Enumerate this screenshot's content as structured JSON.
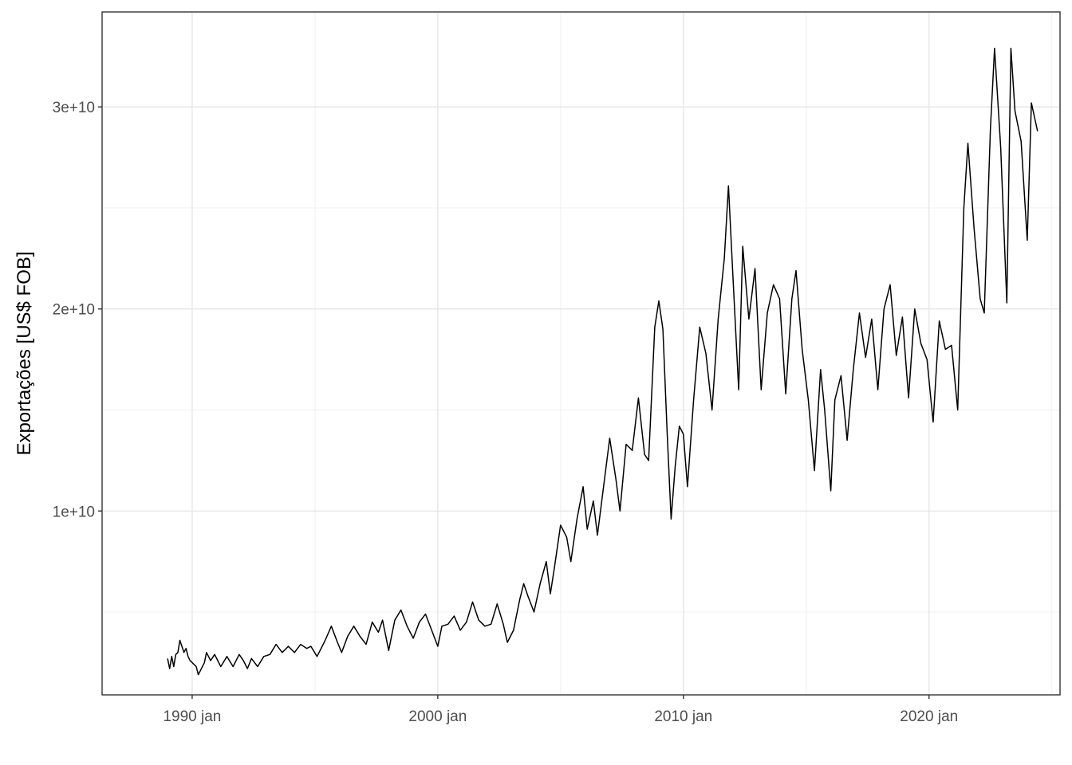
{
  "chart_data": {
    "type": "line",
    "title": "",
    "xlabel": "",
    "ylabel": "Exportações [US$ FOB]",
    "x_start": "1989-01",
    "x_end": "2024-06",
    "x_step": "month",
    "xlim": [
      "1986-05",
      "2025-05"
    ],
    "ylim": [
      900000000.0,
      34700000000.0
    ],
    "x_ticks": [
      {
        "value": "1990-01",
        "label": "1990 jan"
      },
      {
        "value": "2000-01",
        "label": "2000 jan"
      },
      {
        "value": "2010-01",
        "label": "2010 jan"
      },
      {
        "value": "2020-01",
        "label": "2020 jan"
      }
    ],
    "x_minor_ticks": [
      "1995-01",
      "2005-01",
      "2015-01",
      "2025-01"
    ],
    "y_ticks": [
      {
        "value": 10000000000,
        "label": "1e+10"
      },
      {
        "value": 20000000000,
        "label": "2e+10"
      },
      {
        "value": 30000000000,
        "label": "3e+10"
      }
    ],
    "y_minor_ticks": [
      5000000000,
      15000000000,
      25000000000
    ],
    "grid": true,
    "line_color": "#000000",
    "series": [
      {
        "keypoints": [
          [
            "1989-01",
            2700000000.0
          ],
          [
            "1989-02",
            2200000000.0
          ],
          [
            "1989-03",
            2800000000.0
          ],
          [
            "1989-04",
            2300000000.0
          ],
          [
            "1989-05",
            2900000000.0
          ],
          [
            "1989-06",
            3000000000.0
          ],
          [
            "1989-07",
            3600000000.0
          ],
          [
            "1989-08",
            3300000000.0
          ],
          [
            "1989-09",
            3000000000.0
          ],
          [
            "1989-10",
            3200000000.0
          ],
          [
            "1989-11",
            2800000000.0
          ],
          [
            "1989-12",
            2600000000.0
          ],
          [
            "1990-01",
            2500000000.0
          ],
          [
            "1990-03",
            2300000000.0
          ],
          [
            "1990-04",
            1900000000.0
          ],
          [
            "1990-05",
            2100000000.0
          ],
          [
            "1990-07",
            2500000000.0
          ],
          [
            "1990-08",
            3000000000.0
          ],
          [
            "1990-10",
            2600000000.0
          ],
          [
            "1990-12",
            2900000000.0
          ],
          [
            "1991-03",
            2300000000.0
          ],
          [
            "1991-06",
            2800000000.0
          ],
          [
            "1991-09",
            2300000000.0
          ],
          [
            "1991-12",
            2900000000.0
          ],
          [
            "1992-02",
            2600000000.0
          ],
          [
            "1992-04",
            2200000000.0
          ],
          [
            "1992-06",
            2700000000.0
          ],
          [
            "1992-09",
            2300000000.0
          ],
          [
            "1992-12",
            2800000000.0
          ],
          [
            "1993-03",
            2900000000.0
          ],
          [
            "1993-06",
            3400000000.0
          ],
          [
            "1993-09",
            3000000000.0
          ],
          [
            "1993-12",
            3300000000.0
          ],
          [
            "1994-03",
            3000000000.0
          ],
          [
            "1994-06",
            3400000000.0
          ],
          [
            "1994-09",
            3200000000.0
          ],
          [
            "1994-11",
            3300000000.0
          ],
          [
            "1995-02",
            2800000000.0
          ],
          [
            "1995-06",
            3600000000.0
          ],
          [
            "1995-09",
            4300000000.0
          ],
          [
            "1995-12",
            3500000000.0
          ],
          [
            "1996-02",
            3000000000.0
          ],
          [
            "1996-05",
            3800000000.0
          ],
          [
            "1996-08",
            4300000000.0
          ],
          [
            "1996-11",
            3800000000.0
          ],
          [
            "1997-02",
            3400000000.0
          ],
          [
            "1997-05",
            4500000000.0
          ],
          [
            "1997-08",
            4000000000.0
          ],
          [
            "1997-10",
            4600000000.0
          ],
          [
            "1998-01",
            3100000000.0
          ],
          [
            "1998-04",
            4600000000.0
          ],
          [
            "1998-07",
            5100000000.0
          ],
          [
            "1998-10",
            4300000000.0
          ],
          [
            "1999-01",
            3700000000.0
          ],
          [
            "1999-04",
            4500000000.0
          ],
          [
            "1999-07",
            4900000000.0
          ],
          [
            "1999-10",
            4100000000.0
          ],
          [
            "2000-01",
            3300000000.0
          ],
          [
            "2000-03",
            4300000000.0
          ],
          [
            "2000-06",
            4400000000.0
          ],
          [
            "2000-09",
            4800000000.0
          ],
          [
            "2000-12",
            4100000000.0
          ],
          [
            "2001-03",
            4500000000.0
          ],
          [
            "2001-06",
            5500000000.0
          ],
          [
            "2001-09",
            4600000000.0
          ],
          [
            "2001-12",
            4300000000.0
          ],
          [
            "2002-03",
            4400000000.0
          ],
          [
            "2002-06",
            5400000000.0
          ],
          [
            "2002-09",
            4400000000.0
          ],
          [
            "2002-11",
            3500000000.0
          ],
          [
            "2003-02",
            4100000000.0
          ],
          [
            "2003-05",
            5600000000.0
          ],
          [
            "2003-07",
            6400000000.0
          ],
          [
            "2003-09",
            5800000000.0
          ],
          [
            "2003-12",
            5000000000.0
          ],
          [
            "2004-03",
            6400000000.0
          ],
          [
            "2004-06",
            7500000000.0
          ],
          [
            "2004-08",
            5900000000.0
          ],
          [
            "2004-10",
            7200000000.0
          ],
          [
            "2005-01",
            9300000000.0
          ],
          [
            "2005-04",
            8700000000.0
          ],
          [
            "2005-06",
            7500000000.0
          ],
          [
            "2005-09",
            9600000000.0
          ],
          [
            "2005-12",
            11200000000.0
          ],
          [
            "2006-02",
            9100000000.0
          ],
          [
            "2006-05",
            10500000000.0
          ],
          [
            "2006-07",
            8800000000.0
          ],
          [
            "2006-10",
            11200000000.0
          ],
          [
            "2007-01",
            13600000000.0
          ],
          [
            "2007-04",
            11600000000.0
          ],
          [
            "2007-06",
            10000000000.0
          ],
          [
            "2007-09",
            13300000000.0
          ],
          [
            "2007-12",
            13000000000.0
          ],
          [
            "2008-03",
            15600000000.0
          ],
          [
            "2008-06",
            12800000000.0
          ],
          [
            "2008-08",
            12500000000.0
          ],
          [
            "2008-11",
            19100000000.0
          ],
          [
            "2009-01",
            20400000000.0
          ],
          [
            "2009-03",
            19000000000.0
          ],
          [
            "2009-05",
            14000000000.0
          ],
          [
            "2009-07",
            9600000000.0
          ],
          [
            "2009-09",
            12200000000.0
          ],
          [
            "2009-11",
            14200000000.0
          ],
          [
            "2010-01",
            13800000000.0
          ],
          [
            "2010-03",
            11200000000.0
          ],
          [
            "2010-06",
            15500000000.0
          ],
          [
            "2010-09",
            19100000000.0
          ],
          [
            "2010-12",
            17800000000.0
          ],
          [
            "2011-03",
            15000000000.0
          ],
          [
            "2011-06",
            19500000000.0
          ],
          [
            "2011-09",
            22500000000.0
          ],
          [
            "2011-11",
            26100000000.0
          ],
          [
            "2012-01",
            22000000000.0
          ],
          [
            "2012-04",
            16000000000.0
          ],
          [
            "2012-06",
            23100000000.0
          ],
          [
            "2012-09",
            19500000000.0
          ],
          [
            "2012-12",
            22000000000.0
          ],
          [
            "2013-03",
            16000000000.0
          ],
          [
            "2013-06",
            19800000000.0
          ],
          [
            "2013-09",
            21200000000.0
          ],
          [
            "2013-12",
            20500000000.0
          ],
          [
            "2014-03",
            15800000000.0
          ],
          [
            "2014-06",
            20500000000.0
          ],
          [
            "2014-08",
            21900000000.0
          ],
          [
            "2014-11",
            18000000000.0
          ],
          [
            "2015-02",
            15500000000.0
          ],
          [
            "2015-05",
            12000000000.0
          ],
          [
            "2015-08",
            17000000000.0
          ],
          [
            "2015-10",
            15000000000.0
          ],
          [
            "2016-01",
            11000000000.0
          ],
          [
            "2016-03",
            15500000000.0
          ],
          [
            "2016-06",
            16700000000.0
          ],
          [
            "2016-09",
            13500000000.0
          ],
          [
            "2016-12",
            17000000000.0
          ],
          [
            "2017-03",
            19800000000.0
          ],
          [
            "2017-06",
            17600000000.0
          ],
          [
            "2017-09",
            19500000000.0
          ],
          [
            "2017-12",
            16000000000.0
          ],
          [
            "2018-03",
            20000000000.0
          ],
          [
            "2018-06",
            21200000000.0
          ],
          [
            "2018-09",
            17700000000.0
          ],
          [
            "2018-12",
            19600000000.0
          ],
          [
            "2019-03",
            15600000000.0
          ],
          [
            "2019-06",
            20000000000.0
          ],
          [
            "2019-09",
            18300000000.0
          ],
          [
            "2019-12",
            17500000000.0
          ],
          [
            "2020-03",
            14400000000.0
          ],
          [
            "2020-06",
            19400000000.0
          ],
          [
            "2020-09",
            18000000000.0
          ],
          [
            "2020-12",
            18200000000.0
          ],
          [
            "2021-03",
            15000000000.0
          ],
          [
            "2021-06",
            25000000000.0
          ],
          [
            "2021-08",
            28200000000.0
          ],
          [
            "2021-11",
            24000000000.0
          ],
          [
            "2022-02",
            20500000000.0
          ],
          [
            "2022-04",
            19800000000.0
          ],
          [
            "2022-07",
            28900000000.0
          ],
          [
            "2022-09",
            32900000000.0
          ],
          [
            "2022-12",
            28000000000.0
          ],
          [
            "2023-03",
            20300000000.0
          ],
          [
            "2023-05",
            32900000000.0
          ],
          [
            "2023-07",
            29800000000.0
          ],
          [
            "2023-10",
            28300000000.0
          ],
          [
            "2024-01",
            23400000000.0
          ],
          [
            "2024-03",
            30200000000.0
          ],
          [
            "2024-06",
            28800000000.0
          ]
        ]
      }
    ]
  }
}
